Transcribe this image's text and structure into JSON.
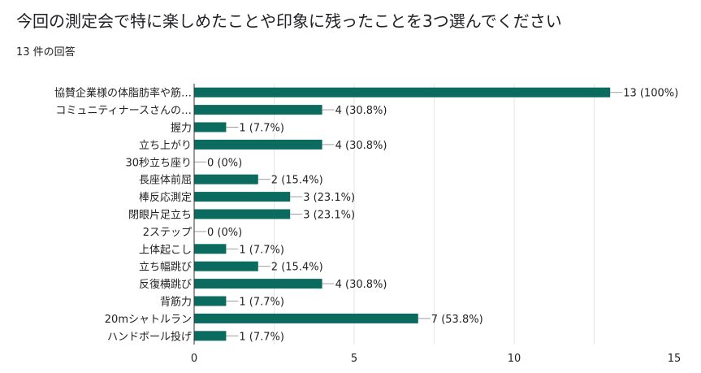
{
  "title": "今回の測定会で特に楽しめたことや印象に残ったことを3つ選んでください",
  "subtitle": "13 件の回答",
  "colors": {
    "bar": "#0b6b5f",
    "grid": "#e6e6e6",
    "axis": "#333333",
    "label": "#222222"
  },
  "chart_data": {
    "type": "bar",
    "orientation": "horizontal",
    "categories": [
      "協賛企業様の体脂肪率や筋…",
      "コミュニティナースさんの…",
      "握力",
      "立ち上がり",
      "30秒立ち座り",
      "長座体前屈",
      "棒反応測定",
      "閉眼片足立ち",
      "2ステップ",
      "上体起こし",
      "立ち幅跳び",
      "反復横跳び",
      "背筋力",
      "20mシャトルラン",
      "ハンドボール投げ"
    ],
    "values": [
      13,
      4,
      1,
      4,
      0,
      2,
      3,
      3,
      0,
      1,
      2,
      4,
      1,
      7,
      1
    ],
    "data_labels": [
      "13 (100%)",
      "4 (30.8%)",
      "1 (7.7%)",
      "4 (30.8%)",
      "0 (0%)",
      "2 (15.4%)",
      "3 (23.1%)",
      "3 (23.1%)",
      "0 (0%)",
      "1 (7.7%)",
      "2 (15.4%)",
      "4 (30.8%)",
      "1 (7.7%)",
      "7 (53.8%)",
      "1 (7.7%)"
    ],
    "xlim": [
      0,
      15
    ],
    "xticks": [
      0,
      5,
      10,
      15
    ],
    "grid": true,
    "legend": "none"
  }
}
